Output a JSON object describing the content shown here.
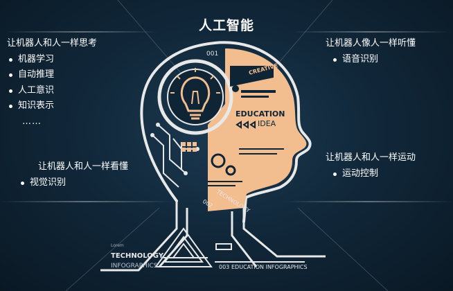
{
  "title": "人工智能",
  "think": {
    "heading": "让机器人和人一样思考",
    "items": [
      "机器学习",
      "自动推理",
      "人工意识",
      "知识表示"
    ],
    "ellipsis": "……"
  },
  "see": {
    "heading": "让机器人和人一样看懂",
    "items": [
      "视觉识别"
    ]
  },
  "hear": {
    "heading": "让机器人像人一样听懂",
    "items": [
      "语音识别"
    ]
  },
  "move": {
    "heading": "让机器人和人一样运动",
    "items": [
      "运动控制"
    ]
  },
  "art": {
    "label_001": "001",
    "creative": "CREATIVE",
    "education": "EDUCATION",
    "idea": "IDEA",
    "technology": "TECHNOLOGY",
    "label_002": "002",
    "lorem": "Lorem",
    "technology_bottom": "TECHNOLOGY",
    "infographics": "INFOGRAPHICS",
    "label_003": "003",
    "edu_infographics": "EDUCATION INFOGRAPHICS",
    "colors": {
      "face": "#f2bd8f",
      "line": "#e8e8e8",
      "bg": "#0d1f2e"
    }
  }
}
